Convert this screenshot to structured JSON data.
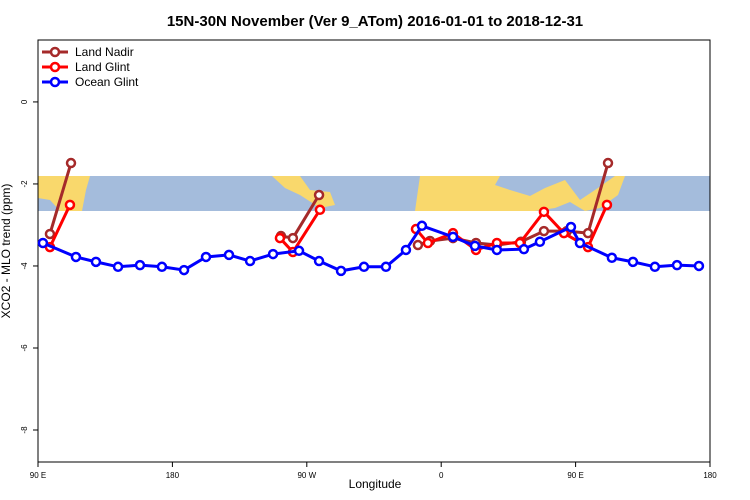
{
  "chart_data": {
    "type": "line",
    "title": "15N-30N November (Ver 9_ATom)   2016-01-01 to 2018-12-31",
    "x_label": "Longitude",
    "y_label": "XCO2 - MLO trend (ppm)",
    "xlim": [
      90,
      540
    ],
    "ylim": [
      -8.78,
      1.51
    ],
    "xticks": [
      {
        "value": 90,
        "label": "90 E"
      },
      {
        "value": 180,
        "label": "180"
      },
      {
        "value": 270,
        "label": "90 W"
      },
      {
        "value": 360,
        "label": "0"
      },
      {
        "value": 450,
        "label": "90 E"
      },
      {
        "value": 540,
        "label": "180"
      }
    ],
    "yticks": [
      0,
      -2,
      -4,
      -6,
      -8
    ],
    "legend": "top-left",
    "series": [
      {
        "name": "Land Nadir",
        "color": "#a52a2a",
        "x": [
          98.0,
          112.1,
          null,
          252.7,
          260.7,
          278.2,
          null,
          344.4,
          352.5,
          367.9,
          383.3,
          397.3,
          413.4,
          428.8,
          444.2,
          458.3,
          471.7
        ],
        "values": [
          -3.22,
          -1.49,
          null,
          -3.27,
          -3.32,
          -2.27,
          null,
          -3.49,
          -3.39,
          -3.32,
          -3.44,
          -3.49,
          -3.41,
          -3.15,
          -3.15,
          -3.2,
          -1.49
        ]
      },
      {
        "name": "Land Glint",
        "color": "#ff0000",
        "x": [
          98.0,
          111.4,
          null,
          252.0,
          260.7,
          278.8,
          null,
          343.1,
          351.1,
          367.9,
          383.3,
          397.3,
          412.7,
          428.8,
          442.2,
          458.3,
          471.0
        ],
        "values": [
          -3.54,
          -2.51,
          null,
          -3.32,
          -3.66,
          -2.63,
          null,
          -3.1,
          -3.44,
          -3.2,
          -3.61,
          -3.44,
          -3.44,
          -2.68,
          -3.2,
          -3.54,
          -2.51
        ]
      },
      {
        "name": "Ocean Glint",
        "color": "#0000ff",
        "x": [
          93.3,
          115.4,
          128.8,
          143.6,
          158.3,
          173.0,
          187.8,
          202.5,
          217.9,
          232.0,
          247.4,
          264.8,
          278.2,
          292.9,
          308.3,
          323.0,
          336.4,
          347.1,
          367.9,
          382.6,
          397.3,
          415.4,
          426.1,
          446.9,
          452.9,
          474.3,
          488.4,
          503.1,
          517.9,
          532.6
        ],
        "values": [
          -3.44,
          -3.78,
          -3.9,
          -4.02,
          -3.98,
          -4.02,
          -4.1,
          -3.78,
          -3.73,
          -3.88,
          -3.71,
          -3.63,
          -3.88,
          -4.12,
          -4.02,
          -4.02,
          -3.61,
          -3.02,
          -3.29,
          -3.51,
          -3.61,
          -3.59,
          -3.41,
          -3.05,
          -3.44,
          -3.8,
          -3.9,
          -4.02,
          -3.98,
          -4.0
        ]
      }
    ]
  }
}
